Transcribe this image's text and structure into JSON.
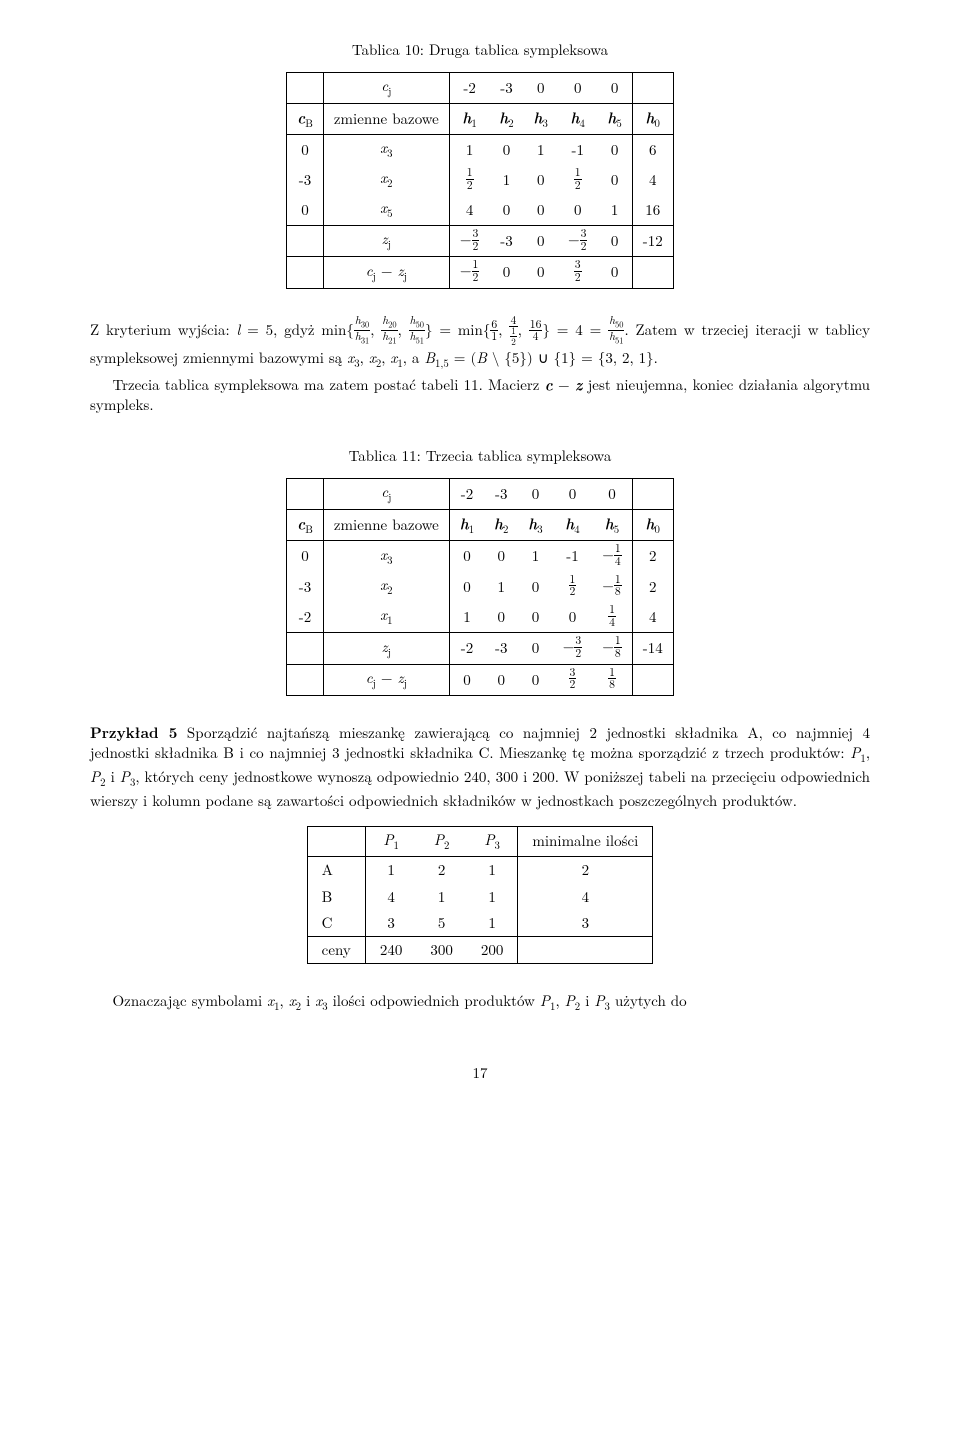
{
  "table10": {
    "caption": "Tablica 10: Druga tablica sympleksowa",
    "head": {
      "r1": [
        "",
        "cⱼ",
        "-2",
        "-3",
        "0",
        "0",
        "0",
        ""
      ],
      "r2": [
        "c_B",
        "zmienne bazowe",
        "h₁",
        "h₂",
        "h₃",
        "h₄",
        "h₅",
        "h₀"
      ]
    },
    "rows": [
      [
        "0",
        "x₃",
        "1",
        "0",
        "1",
        "-1",
        "0",
        "6"
      ],
      [
        "-3",
        "x₂",
        "½",
        "1",
        "0",
        "½",
        "0",
        "4"
      ],
      [
        "0",
        "x₅",
        "4",
        "0",
        "0",
        "0",
        "1",
        "16"
      ]
    ],
    "zj": [
      "",
      "zⱼ",
      "−3/2",
      "-3",
      "0",
      "−3/2",
      "0",
      "-12"
    ],
    "cz": [
      "",
      "cⱼ − zⱼ",
      "−1/2",
      "0",
      "0",
      "3/2",
      "0",
      ""
    ]
  },
  "para1": {
    "pre": "Z kryterium wyjścia: ",
    "post": ". Zatem w trzeciej iteracji w tablicy sympleksowej zmiennymi bazowymi są x₃, x₂, x₁, a B₁,₅ = (B \\ {5}) ∪ {1} = {3, 2, 1}."
  },
  "para2": "Trzecia tablica sympleksowa ma zatem postać tabeli 11. Macierz c − z jest nieujemna, koniec działania algorytmu sympleks.",
  "table11": {
    "caption": "Tablica 11: Trzecia tablica sympleksowa",
    "head": {
      "r1": [
        "",
        "cⱼ",
        "-2",
        "-3",
        "0",
        "0",
        "0",
        ""
      ],
      "r2": [
        "c_B",
        "zmienne bazowe",
        "h₁",
        "h₂",
        "h₃",
        "h₄",
        "h₅",
        "h₀"
      ]
    },
    "rows": [
      [
        "0",
        "x₃",
        "0",
        "0",
        "1",
        "-1",
        "−1/4",
        "2"
      ],
      [
        "-3",
        "x₂",
        "0",
        "1",
        "0",
        "½",
        "−1/8",
        "2"
      ],
      [
        "-2",
        "x₁",
        "1",
        "0",
        "0",
        "0",
        "1/4",
        "4"
      ]
    ],
    "zj": [
      "",
      "zⱼ",
      "-2",
      "-3",
      "0",
      "−3/2",
      "−1/8",
      "-14"
    ],
    "cz": [
      "",
      "cⱼ − zⱼ",
      "0",
      "0",
      "0",
      "3/2",
      "1/8",
      ""
    ]
  },
  "przyklad5": {
    "label": "Przykład 5",
    "text": " Sporządzić najtańszą mieszankę zawierającą co najmniej 2 jednostki składnika A, co najmniej 4 jednostki składnika B i co najmniej 3 jednostki składnika C. Mieszankę tę można sporządzić z trzech produktów: P₁, P₂ i P₃, których ceny jednostkowe wynoszą odpowiednio 240, 300 i 200. W poniższej tabeli na przecięciu odpowiednich wierszy i kolumn podane są zawartości odpowiednich składników w jednostkach poszczególnych produktów."
  },
  "table3": {
    "head": [
      "",
      "P₁",
      "P₂",
      "P₃",
      "minimalne ilości"
    ],
    "rows": [
      [
        "A",
        "1",
        "2",
        "1",
        "2"
      ],
      [
        "B",
        "4",
        "1",
        "1",
        "4"
      ],
      [
        "C",
        "3",
        "5",
        "1",
        "3"
      ]
    ],
    "foot": [
      "ceny",
      "240",
      "300",
      "200",
      ""
    ]
  },
  "closing": "Oznaczając symbolami x₁, x₂ i x₃ ilości odpowiednich produktów P₁, P₂ i P₃ użytych do",
  "pagenum": "17"
}
